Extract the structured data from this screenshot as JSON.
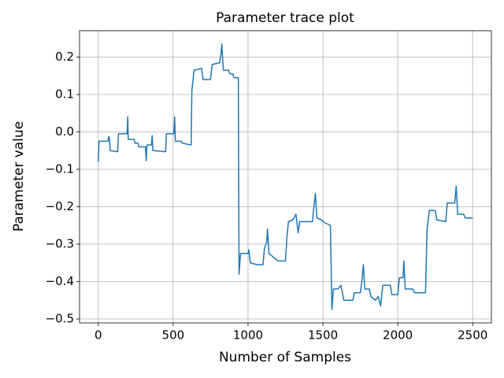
{
  "chart_data": {
    "type": "line",
    "title": "Parameter trace plot",
    "xlabel": "Number of Samples",
    "ylabel": "Parameter value",
    "x": [
      0,
      5,
      65,
      70,
      75,
      80,
      130,
      135,
      192,
      197,
      200,
      240,
      245,
      265,
      270,
      315,
      320,
      325,
      355,
      360,
      365,
      450,
      455,
      505,
      510,
      515,
      555,
      560,
      620,
      625,
      640,
      690,
      700,
      750,
      760,
      810,
      820,
      825,
      835,
      870,
      880,
      900,
      905,
      935,
      940,
      950,
      1000,
      1005,
      1015,
      1060,
      1100,
      1110,
      1125,
      1130,
      1140,
      1170,
      1200,
      1250,
      1260,
      1270,
      1300,
      1320,
      1335,
      1345,
      1430,
      1440,
      1450,
      1460,
      1490,
      1500,
      1550,
      1560,
      1570,
      1600,
      1620,
      1640,
      1700,
      1710,
      1750,
      1760,
      1770,
      1780,
      1810,
      1820,
      1850,
      1870,
      1885,
      1900,
      1950,
      1960,
      2000,
      2010,
      2035,
      2040,
      2050,
      2100,
      2110,
      2185,
      2195,
      2210,
      2250,
      2260,
      2320,
      2330,
      2380,
      2390,
      2400,
      2440,
      2450,
      2500
    ],
    "series": [
      {
        "name": "trace",
        "color": "#1f77b4",
        "values": [
          -0.08,
          -0.025,
          -0.025,
          -0.012,
          -0.02,
          -0.05,
          -0.053,
          -0.005,
          -0.005,
          0.04,
          -0.02,
          -0.02,
          -0.03,
          -0.03,
          -0.04,
          -0.04,
          -0.077,
          -0.035,
          -0.035,
          -0.01,
          -0.05,
          -0.053,
          -0.005,
          -0.005,
          0.04,
          -0.025,
          -0.025,
          -0.03,
          -0.035,
          0.11,
          0.165,
          0.17,
          0.14,
          0.14,
          0.18,
          0.185,
          0.21,
          0.235,
          0.165,
          0.165,
          0.155,
          0.155,
          0.145,
          0.145,
          -0.38,
          -0.325,
          -0.325,
          -0.315,
          -0.35,
          -0.355,
          -0.355,
          -0.31,
          -0.295,
          -0.26,
          -0.325,
          -0.335,
          -0.345,
          -0.345,
          -0.28,
          -0.24,
          -0.235,
          -0.22,
          -0.27,
          -0.24,
          -0.24,
          -0.2,
          -0.165,
          -0.23,
          -0.235,
          -0.24,
          -0.25,
          -0.475,
          -0.42,
          -0.42,
          -0.41,
          -0.45,
          -0.45,
          -0.43,
          -0.43,
          -0.4,
          -0.355,
          -0.42,
          -0.42,
          -0.44,
          -0.45,
          -0.44,
          -0.465,
          -0.41,
          -0.41,
          -0.435,
          -0.435,
          -0.39,
          -0.39,
          -0.345,
          -0.42,
          -0.42,
          -0.43,
          -0.43,
          -0.265,
          -0.21,
          -0.21,
          -0.235,
          -0.24,
          -0.19,
          -0.19,
          -0.145,
          -0.22,
          -0.22,
          -0.23,
          -0.23
        ]
      }
    ],
    "xlim": [
      -125,
      2625
    ],
    "ylim": [
      -0.5105,
      0.2705
    ],
    "xticks": [
      0,
      500,
      1000,
      1500,
      2000,
      2500
    ],
    "yticks": [
      {
        "value": -0.5,
        "label": "−0.5"
      },
      {
        "value": -0.4,
        "label": "−0.4"
      },
      {
        "value": -0.3,
        "label": "−0.3"
      },
      {
        "value": -0.2,
        "label": "−0.2"
      },
      {
        "value": -0.1,
        "label": "−0.1"
      },
      {
        "value": 0,
        "label": "0.0"
      },
      0.1,
      0.2
    ],
    "grid": true
  }
}
